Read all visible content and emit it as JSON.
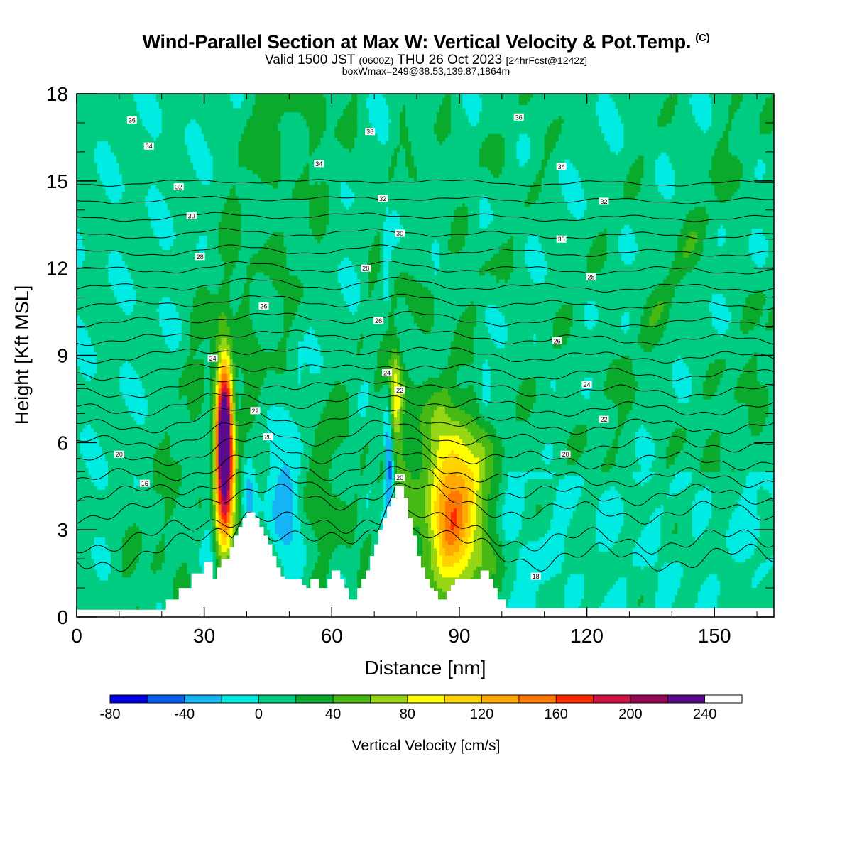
{
  "header": {
    "title": "Wind-Parallel Section at Max W: Vertical Velocity & Pot.Temp.",
    "copyright": "(C)",
    "valid_prefix": "Valid 1500 JST",
    "valid_utc": "(0600Z)",
    "valid_date": "THU 26 Oct 2023",
    "forecast": "[24hrFcst@1242z]",
    "boxmax": "boxWmax=249@38.53,139.87,1864m"
  },
  "chart_data": {
    "type": "heatmap",
    "xlabel": "Distance [nm]",
    "ylabel": "Height [Kft MSL]",
    "xlim": [
      0,
      164
    ],
    "ylim": [
      0,
      18
    ],
    "xticks": [
      0,
      30,
      60,
      90,
      120,
      150
    ],
    "yticks": [
      0,
      3,
      6,
      9,
      12,
      15,
      18
    ],
    "colorbar": {
      "label": "Vertical Velocity [cm/s]",
      "min": -80,
      "max": 260,
      "step": 20,
      "tick_labels": [
        "-80",
        "-40",
        "0",
        "40",
        "80",
        "120",
        "160",
        "200",
        "240"
      ],
      "colors": [
        "#0000e6",
        "#0a5ff0",
        "#14b4f5",
        "#00ebe1",
        "#00cd82",
        "#0aaa2d",
        "#46b914",
        "#96d614",
        "#ffff00",
        "#ffd200",
        "#ffaa00",
        "#ff7800",
        "#ff2800",
        "#d21446",
        "#960a55",
        "#5a0a8c",
        "#ffffff"
      ]
    },
    "terrain": {
      "x": [
        0,
        20,
        21,
        24,
        27,
        30,
        32,
        33,
        34,
        36,
        37,
        38,
        39,
        40,
        41,
        42,
        43,
        44,
        45,
        46,
        47,
        48,
        49,
        50,
        51,
        52,
        53,
        54,
        55,
        56,
        57,
        58,
        59,
        60,
        61,
        62,
        63,
        64,
        65,
        66,
        67,
        68,
        69,
        70,
        71,
        72,
        73,
        74,
        75,
        76,
        77,
        78,
        79,
        80,
        81,
        82,
        83,
        84,
        85,
        86,
        87,
        88,
        89,
        90,
        91,
        92,
        93,
        94,
        95,
        96,
        97,
        98,
        99,
        100,
        101,
        102,
        103,
        164
      ],
      "h": [
        0.25,
        0.25,
        0.6,
        1.0,
        1.5,
        1.9,
        1.3,
        1.7,
        2.0,
        2.4,
        2.8,
        3.1,
        3.4,
        3.6,
        3.6,
        3.4,
        3.1,
        2.8,
        2.5,
        2.1,
        1.7,
        1.4,
        1.3,
        1.3,
        1.3,
        1.3,
        1.1,
        1.0,
        1.3,
        1.3,
        1.0,
        1.0,
        1.3,
        1.6,
        1.6,
        1.3,
        1.0,
        0.6,
        0.6,
        1.0,
        1.3,
        1.6,
        2.1,
        2.5,
        3.0,
        3.4,
        3.8,
        4.1,
        4.5,
        4.5,
        4.1,
        3.4,
        2.8,
        2.1,
        1.7,
        1.3,
        1.0,
        0.9,
        0.6,
        0.6,
        0.9,
        1.1,
        1.3,
        1.3,
        1.3,
        1.3,
        1.3,
        1.3,
        1.6,
        1.6,
        1.3,
        1.0,
        0.6,
        0.6,
        0.3,
        0.3,
        0.3,
        0.3
      ]
    },
    "w_features": [
      {
        "x": 34.8,
        "z": 6.5,
        "sx": 1.4,
        "sz": 1.8,
        "amp": 250
      },
      {
        "x": 35.0,
        "z": 4.3,
        "sx": 2.2,
        "sz": 1.6,
        "amp": 110
      },
      {
        "x": 88.8,
        "z": 3.8,
        "sx": 4.8,
        "sz": 2.2,
        "amp": 140
      },
      {
        "x": 74.8,
        "z": 7.6,
        "sx": 1.1,
        "sz": 1.4,
        "amp": 70
      },
      {
        "x": 77.0,
        "z": 4.0,
        "sx": 2.5,
        "sz": 2.8,
        "amp": 30
      },
      {
        "x": 58.0,
        "z": 4.5,
        "sx": 2.5,
        "sz": 2.0,
        "amp": 28
      },
      {
        "x": 40.4,
        "z": 6.0,
        "sx": 1.8,
        "sz": 3.0,
        "amp": 22
      },
      {
        "x": 31.5,
        "z": 4.0,
        "sx": 1.3,
        "sz": 2.2,
        "amp": -38
      },
      {
        "x": 36.8,
        "z": 6.2,
        "sx": 1.5,
        "sz": 2.2,
        "amp": -34
      },
      {
        "x": 40.5,
        "z": 4.2,
        "sx": 1.3,
        "sz": 1.8,
        "amp": -50
      },
      {
        "x": 49.5,
        "z": 3.5,
        "sx": 3.0,
        "sz": 1.8,
        "amp": -38
      },
      {
        "x": 73.5,
        "z": 5.5,
        "sx": 0.8,
        "sz": 1.4,
        "amp": -85
      },
      {
        "x": 96.0,
        "z": 8.0,
        "sx": 0.9,
        "sz": 0.7,
        "amp": -30
      },
      {
        "x": 72.8,
        "z": 12.5,
        "sx": 0.5,
        "sz": 1.4,
        "amp": -22
      },
      {
        "x": 84.5,
        "z": 10.5,
        "sx": 0.4,
        "sz": 0.9,
        "amp": -22
      },
      {
        "x": 52.5,
        "z": 8.5,
        "sx": 0.3,
        "sz": 0.6,
        "amp": -20
      }
    ],
    "green_bands": [
      {
        "x0": 8,
        "slope": 2.4
      },
      {
        "x0": 15,
        "slope": 2.2
      },
      {
        "x0": 25,
        "slope": 2.0
      },
      {
        "x0": 33,
        "slope": 1.9
      },
      {
        "x0": 47,
        "slope": 2.4
      },
      {
        "x0": 57,
        "slope": 2.7
      },
      {
        "x0": 67,
        "slope": 2.8
      },
      {
        "x0": 82,
        "slope": 3.3
      },
      {
        "x0": 95,
        "slope": 4.0
      },
      {
        "x0": 112,
        "slope": 2.5
      },
      {
        "x0": 120,
        "slope": 3.8
      },
      {
        "x0": 132,
        "slope": 3.2
      },
      {
        "x0": 143,
        "slope": 2.6
      },
      {
        "x0": 152,
        "slope": 4.4
      },
      {
        "x0": 159,
        "slope": 5.5
      }
    ],
    "theta_isolines": {
      "levels": [
        16,
        17,
        18,
        19,
        20,
        21,
        22,
        23,
        24,
        25,
        26,
        27,
        28,
        29,
        30,
        31,
        32,
        33,
        34,
        35,
        36,
        37
      ],
      "labels": [
        {
          "text": "36",
          "x": 13,
          "y": 17.1
        },
        {
          "text": "34",
          "x": 17,
          "y": 16.2
        },
        {
          "text": "32",
          "x": 24,
          "y": 14.8
        },
        {
          "text": "30",
          "x": 27,
          "y": 13.8
        },
        {
          "text": "28",
          "x": 29,
          "y": 12.4
        },
        {
          "text": "26",
          "x": 44,
          "y": 10.7
        },
        {
          "text": "24",
          "x": 32,
          "y": 8.9
        },
        {
          "text": "22",
          "x": 42,
          "y": 7.1
        },
        {
          "text": "20",
          "x": 45,
          "y": 6.2
        },
        {
          "text": "20",
          "x": 10,
          "y": 5.6
        },
        {
          "text": "16",
          "x": 16,
          "y": 4.6
        },
        {
          "text": "36",
          "x": 69,
          "y": 16.7
        },
        {
          "text": "34",
          "x": 57,
          "y": 15.6
        },
        {
          "text": "32",
          "x": 72,
          "y": 14.4
        },
        {
          "text": "30",
          "x": 76,
          "y": 13.2
        },
        {
          "text": "28",
          "x": 68,
          "y": 12.0
        },
        {
          "text": "26",
          "x": 71,
          "y": 10.2
        },
        {
          "text": "24",
          "x": 73,
          "y": 8.4
        },
        {
          "text": "22",
          "x": 76,
          "y": 7.8
        },
        {
          "text": "20",
          "x": 76,
          "y": 4.8
        },
        {
          "text": "36",
          "x": 104,
          "y": 17.2
        },
        {
          "text": "34",
          "x": 114,
          "y": 15.5
        },
        {
          "text": "32",
          "x": 124,
          "y": 14.3
        },
        {
          "text": "30",
          "x": 114,
          "y": 13.0
        },
        {
          "text": "28",
          "x": 121,
          "y": 11.7
        },
        {
          "text": "26",
          "x": 113,
          "y": 9.5
        },
        {
          "text": "24",
          "x": 120,
          "y": 8.0
        },
        {
          "text": "22",
          "x": 124,
          "y": 6.8
        },
        {
          "text": "20",
          "x": 115,
          "y": 5.6
        },
        {
          "text": "18",
          "x": 108,
          "y": 1.4
        }
      ]
    }
  }
}
